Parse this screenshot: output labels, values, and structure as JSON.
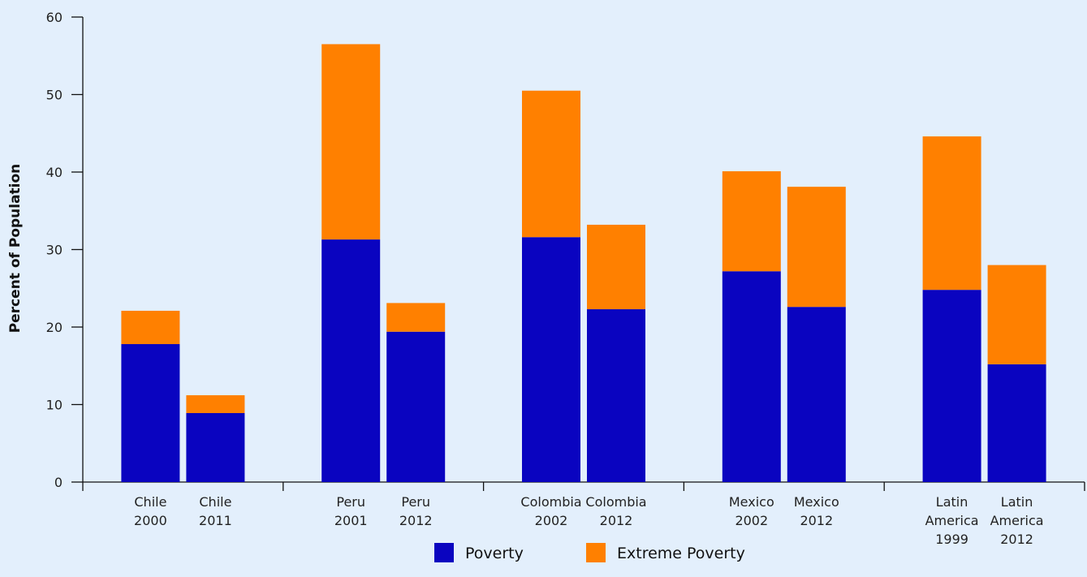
{
  "chart_data": {
    "type": "bar",
    "stacked": true,
    "ylabel": "Percent of Population",
    "xlabel": "",
    "ylim": [
      0,
      60
    ],
    "yticks": [
      0,
      10,
      20,
      30,
      40,
      50,
      60
    ],
    "grid": false,
    "legend_position": "bottom-center",
    "groups": [
      "Chile",
      "Peru",
      "Colombia",
      "Mexico",
      "Latin America"
    ],
    "categories": [
      [
        "Chile",
        "2000"
      ],
      [
        "Chile",
        "2011"
      ],
      [
        "Peru",
        "2001"
      ],
      [
        "Peru",
        "2012"
      ],
      [
        "Colombia",
        "2002"
      ],
      [
        "Colombia",
        "2012"
      ],
      [
        "Mexico",
        "2002"
      ],
      [
        "Mexico",
        "2012"
      ],
      [
        "Latin",
        "America",
        "1999"
      ],
      [
        "Latin",
        "America",
        "2012"
      ]
    ],
    "series": [
      {
        "name": "Poverty",
        "color": "#0a04c0",
        "values": [
          17.8,
          8.9,
          31.3,
          19.4,
          31.6,
          22.3,
          27.2,
          22.6,
          24.8,
          15.2
        ]
      },
      {
        "name": "Extreme Poverty",
        "color": "#ff8000",
        "values": [
          4.3,
          2.3,
          25.2,
          3.7,
          18.9,
          10.9,
          12.9,
          15.5,
          19.8,
          12.8
        ]
      }
    ]
  }
}
